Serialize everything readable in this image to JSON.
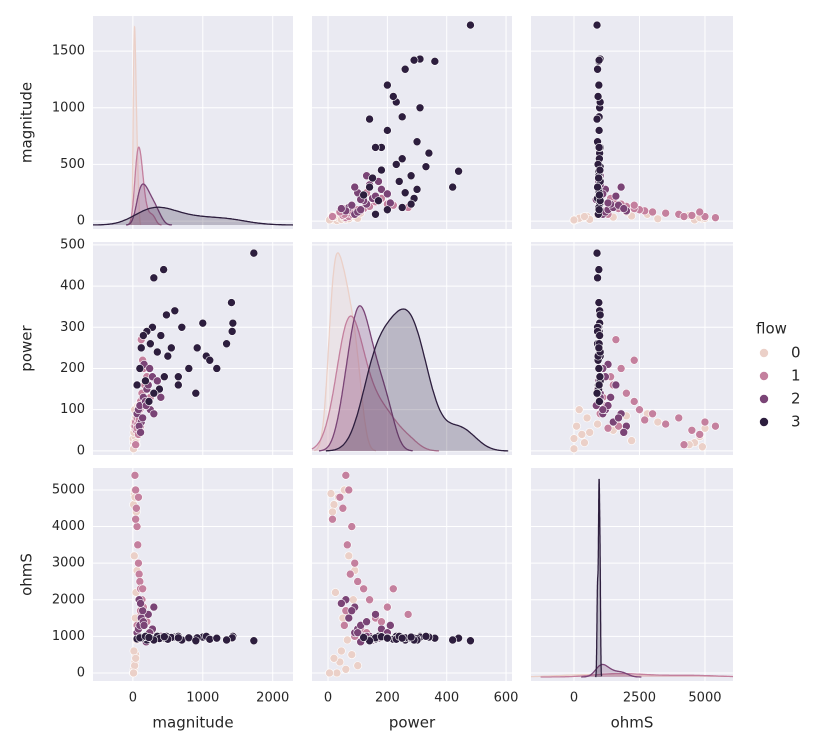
{
  "chart_data": {
    "type": "pairplot",
    "legend_title": "flow",
    "axes": [
      {
        "label": "magnitude",
        "xlim": [
          -570,
          2290
        ],
        "ylim": [
          -70,
          1810
        ],
        "xticks": [
          0,
          1000,
          2000
        ],
        "yticks": [
          0,
          500,
          1000,
          1500
        ]
      },
      {
        "label": "power",
        "xlim": [
          -54,
          620
        ],
        "ylim": [
          -10,
          507
        ],
        "xticks": [
          0,
          200,
          400,
          600
        ],
        "yticks": [
          0,
          100,
          200,
          300,
          400,
          500
        ]
      },
      {
        "label": "ohmS",
        "xlim": [
          -1640,
          6070
        ],
        "ylim": [
          -220,
          5600
        ],
        "xticks": [
          0,
          2500,
          5000
        ],
        "yticks": [
          0,
          1000,
          2000,
          3000,
          4000,
          5000
        ]
      }
    ],
    "series": [
      {
        "name": "0",
        "color": "#ebd0c8",
        "points": [
          [
            10,
            20,
            4600
          ],
          [
            20,
            10,
            4900
          ],
          [
            30,
            40,
            300
          ],
          [
            15,
            60,
            100
          ],
          [
            5,
            30,
            0
          ],
          [
            40,
            80,
            500
          ],
          [
            25,
            100,
            200
          ],
          [
            50,
            15,
            4400
          ],
          [
            35,
            50,
            1500
          ],
          [
            60,
            90,
            2800
          ],
          [
            20,
            70,
            3200
          ],
          [
            45,
            25,
            2200
          ],
          [
            10,
            5,
            0
          ],
          [
            70,
            110,
            1200
          ],
          [
            30,
            35,
            4800
          ],
          [
            15,
            45,
            600
          ],
          [
            55,
            65,
            900
          ],
          [
            80,
            85,
            2000
          ],
          [
            25,
            55,
            5000
          ],
          [
            40,
            20,
            400
          ]
        ]
      },
      {
        "name": "1",
        "color": "#c4809e",
        "points": [
          [
            30,
            60,
            5400
          ],
          [
            40,
            70,
            5000
          ],
          [
            50,
            50,
            4500
          ],
          [
            60,
            80,
            4000
          ],
          [
            70,
            65,
            3500
          ],
          [
            80,
            90,
            3000
          ],
          [
            90,
            75,
            2700
          ],
          [
            100,
            100,
            2500
          ],
          [
            110,
            120,
            2300
          ],
          [
            130,
            140,
            2000
          ],
          [
            150,
            200,
            1800
          ],
          [
            120,
            270,
            1600
          ],
          [
            170,
            160,
            1500
          ],
          [
            200,
            180,
            1400
          ],
          [
            60,
            55,
            1300
          ],
          [
            90,
            110,
            1200
          ],
          [
            140,
            220,
            2300
          ],
          [
            250,
            130,
            1100
          ],
          [
            80,
            40,
            4800
          ],
          [
            110,
            60,
            1700
          ],
          [
            300,
            90,
            1000
          ],
          [
            40,
            15,
            4200
          ]
        ]
      },
      {
        "name": "2",
        "color": "#7a4476",
        "points": [
          [
            60,
            90,
            1100
          ],
          [
            80,
            100,
            1200
          ],
          [
            100,
            110,
            1300
          ],
          [
            120,
            70,
            1500
          ],
          [
            150,
            130,
            1400
          ],
          [
            180,
            120,
            1000
          ],
          [
            200,
            150,
            900
          ],
          [
            220,
            160,
            1600
          ],
          [
            250,
            100,
            1100
          ],
          [
            280,
            180,
            1200
          ],
          [
            300,
            90,
            1800
          ],
          [
            320,
            140,
            1000
          ],
          [
            350,
            170,
            950
          ],
          [
            90,
            60,
            2000
          ],
          [
            140,
            80,
            1700
          ],
          [
            160,
            210,
            1300
          ],
          [
            110,
            45,
            1900
          ],
          [
            190,
            110,
            850
          ],
          [
            240,
            200,
            1100
          ],
          [
            400,
            130,
            1000
          ]
        ]
      },
      {
        "name": "3",
        "color": "#2d1e3e",
        "points": [
          [
            1730,
            480,
            880
          ],
          [
            1410,
            360,
            950
          ],
          [
            1430,
            310,
            1000
          ],
          [
            1420,
            290,
            960
          ],
          [
            1340,
            260,
            900
          ],
          [
            1000,
            310,
            980
          ],
          [
            1050,
            230,
            1000
          ],
          [
            1100,
            220,
            920
          ],
          [
            920,
            250,
            960
          ],
          [
            440,
            440,
            950
          ],
          [
            300,
            420,
            900
          ],
          [
            600,
            340,
            980
          ],
          [
            480,
            330,
            1000
          ],
          [
            280,
            300,
            940
          ],
          [
            700,
            300,
            900
          ],
          [
            550,
            250,
            970
          ],
          [
            800,
            200,
            960
          ],
          [
            650,
            180,
            1000
          ],
          [
            400,
            280,
            950
          ],
          [
            500,
            230,
            920
          ],
          [
            350,
            240,
            1000
          ],
          [
            200,
            290,
            900
          ],
          [
            250,
            260,
            960
          ],
          [
            150,
            280,
            980
          ],
          [
            120,
            250,
            950
          ],
          [
            60,
            160,
            930
          ],
          [
            100,
            200,
            960
          ],
          [
            180,
            170,
            1000
          ],
          [
            380,
            150,
            940
          ],
          [
            300,
            140,
            900
          ],
          [
            650,
            160,
            960
          ],
          [
            900,
            140,
            880
          ],
          [
            450,
            180,
            990
          ],
          [
            1200,
            200,
            950
          ],
          [
            230,
            120,
            970
          ]
        ]
      }
    ]
  }
}
